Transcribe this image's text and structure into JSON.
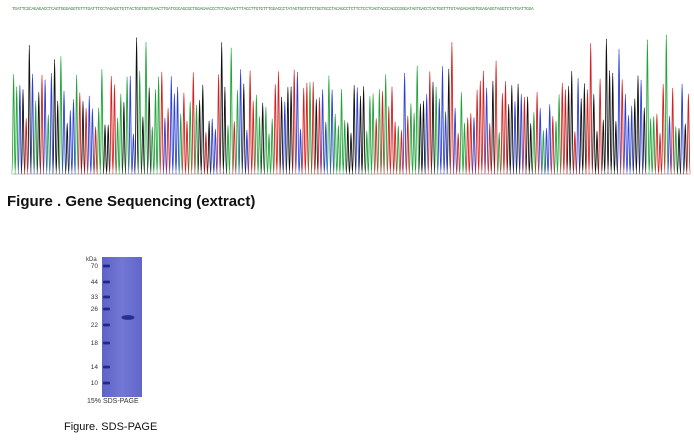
{
  "sequencing": {
    "sequence": "TGATTCGCAGAGACCTCAGTGGGAGGTGTTTGATTTCCTAGAGCTGTTACTGGTGGTGAACTTGATCGCAGCGCTGGAGAACCCTCTAGAACTTTACCTTGTGTTTGGACCCTATAGTGGTCTCTGGTGCCTACAGCCTCTTCTCCTCAGTACCCAGCCGGGATAGTGACCTACTGGTTTGTAAGAGAGGTGGAGAGGTAGGTCTATGATTGGA",
    "caption": "Figure . Gene Sequencing (extract)",
    "trace_colors": {
      "A": "#22a33a",
      "C": "#2b3fd6",
      "G": "#111111",
      "T": "#d42020"
    }
  },
  "gel": {
    "unit": "kDa",
    "markers": [
      "70",
      "44",
      "33",
      "26",
      "22",
      "18",
      "14",
      "10"
    ],
    "footer": "15% SDS-PAGE",
    "caption": "Figure. SDS-PAGE",
    "lane_color": "#6a6fcf",
    "band_color": "#1e2a8a"
  }
}
